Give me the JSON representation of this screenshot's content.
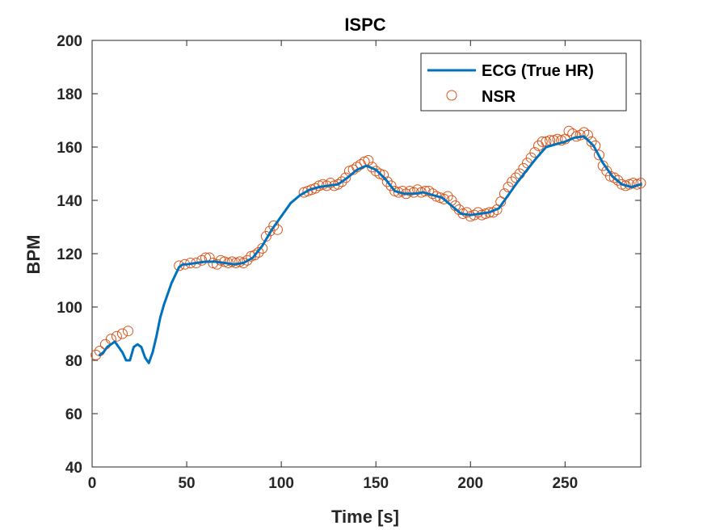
{
  "chart_data": {
    "type": "line",
    "title": "ISPC",
    "xlabel": "Time [s]",
    "ylabel": "BPM",
    "xlim": [
      0,
      290
    ],
    "ylim": [
      40,
      200
    ],
    "xticks": [
      0,
      50,
      100,
      150,
      200,
      250
    ],
    "yticks": [
      40,
      60,
      80,
      100,
      120,
      140,
      160,
      180,
      200
    ],
    "grid": false,
    "legend_position": "top-right",
    "colors": {
      "ecg": "#0072BD",
      "nsr": "#D95319",
      "axis": "#262626"
    },
    "series": [
      {
        "name": "ECG (True HR)",
        "style": "line",
        "x": [
          4,
          6,
          8,
          10,
          12,
          14,
          16,
          18,
          20,
          22,
          24,
          26,
          28,
          30,
          32,
          34,
          36,
          38,
          40,
          42,
          44,
          46,
          48,
          50,
          55,
          60,
          65,
          70,
          75,
          80,
          85,
          90,
          95,
          100,
          105,
          110,
          115,
          120,
          125,
          130,
          135,
          140,
          145,
          150,
          155,
          160,
          165,
          170,
          175,
          180,
          185,
          190,
          195,
          200,
          205,
          210,
          215,
          220,
          225,
          230,
          235,
          240,
          245,
          250,
          255,
          260,
          265,
          270,
          275,
          280,
          285,
          290
        ],
        "y": [
          82,
          83,
          85,
          86,
          87,
          85,
          83,
          80,
          80,
          85,
          86,
          85,
          81,
          79,
          83,
          89,
          96,
          101,
          105,
          109,
          112,
          115,
          116,
          116,
          116.5,
          117,
          117,
          116.5,
          116,
          116.5,
          118.5,
          123,
          129,
          134,
          139,
          142,
          144,
          145,
          145.5,
          146,
          148.5,
          151.5,
          153,
          151.5,
          148,
          143.5,
          142.5,
          142.5,
          143,
          142,
          141,
          138,
          135,
          134.5,
          135,
          135.5,
          137,
          142,
          147,
          151.5,
          156,
          160,
          161,
          162,
          163.5,
          164,
          160.5,
          154,
          149,
          146,
          145,
          146
        ]
      },
      {
        "name": "NSR",
        "style": "markers",
        "marker": "circle",
        "x": [
          2,
          4,
          7,
          10,
          13,
          16,
          19,
          46,
          49,
          52,
          55,
          58,
          60,
          62,
          64,
          66,
          68,
          70,
          72,
          74,
          76,
          78,
          80,
          82,
          84,
          86,
          88,
          90,
          92,
          94,
          96,
          98,
          112,
          114,
          116,
          118,
          120,
          122,
          124,
          126,
          128,
          130,
          132,
          134,
          136,
          138,
          140,
          142,
          144,
          146,
          148,
          150,
          152,
          154,
          156,
          158,
          160,
          162,
          164,
          166,
          168,
          170,
          172,
          174,
          176,
          178,
          180,
          182,
          184,
          186,
          188,
          190,
          192,
          194,
          196,
          198,
          200,
          202,
          204,
          206,
          208,
          210,
          212,
          214,
          216,
          218,
          220,
          222,
          224,
          226,
          228,
          230,
          232,
          234,
          236,
          238,
          240,
          242,
          244,
          246,
          248,
          250,
          252,
          254,
          256,
          258,
          260,
          262,
          264,
          266,
          268,
          270,
          272,
          274,
          276,
          278,
          280,
          282,
          284,
          286,
          288,
          290
        ],
        "y": [
          82,
          83.5,
          86,
          88,
          89,
          90,
          91,
          115.5,
          116,
          116.5,
          116.5,
          117.5,
          118.5,
          118.5,
          116.5,
          116,
          117.5,
          117,
          116.5,
          117,
          116.5,
          117,
          116.5,
          117.5,
          119,
          119.5,
          120.5,
          122,
          126.5,
          128.5,
          130.5,
          129,
          143,
          143.5,
          144,
          144.5,
          145.5,
          146,
          145.5,
          146.5,
          145.5,
          146,
          147,
          148.5,
          151,
          151.5,
          152.5,
          153.5,
          154.5,
          155,
          152.5,
          151,
          150,
          149.5,
          147,
          145.5,
          143.5,
          143,
          143.5,
          142.5,
          143.5,
          143,
          144,
          143,
          143.5,
          143.5,
          142.5,
          141.5,
          141,
          140.5,
          141.5,
          140,
          138,
          136.5,
          135,
          135.5,
          134,
          134.5,
          135.5,
          134.5,
          135,
          135.5,
          135.5,
          136.5,
          139.5,
          142.5,
          145,
          147,
          148.5,
          150,
          152,
          154,
          156,
          158,
          160.5,
          162,
          162,
          162.5,
          162.5,
          163,
          162.5,
          163,
          166,
          165,
          164,
          164.5,
          165.5,
          164.5,
          162,
          160.5,
          157,
          153,
          151,
          149,
          148.5,
          147.5,
          146,
          145.5,
          146,
          146.5,
          146,
          146.5
        ]
      }
    ]
  }
}
